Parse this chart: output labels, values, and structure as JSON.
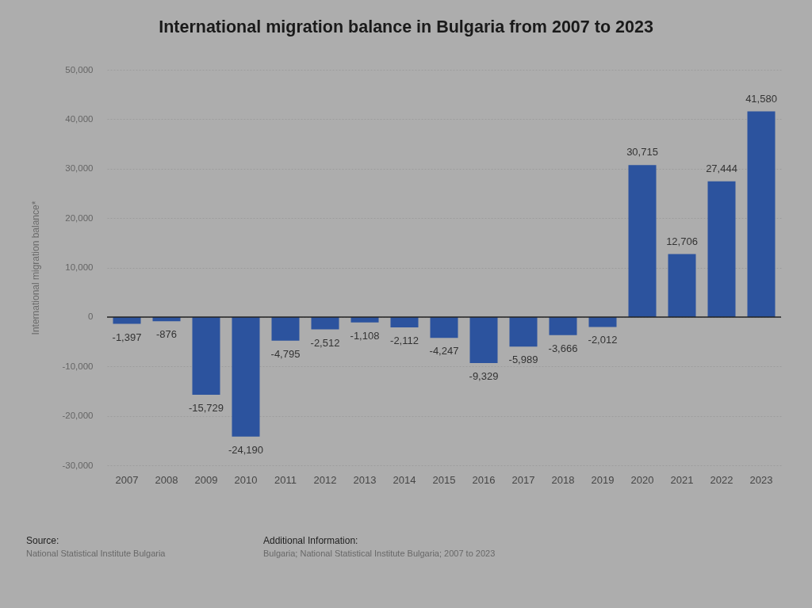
{
  "chart_data": {
    "type": "bar",
    "title": "International migration balance in Bulgaria from 2007 to 2023",
    "ylabel": "International migration balance*",
    "categories": [
      "2007",
      "2008",
      "2009",
      "2010",
      "2011",
      "2012",
      "2013",
      "2014",
      "2015",
      "2016",
      "2017",
      "2018",
      "2019",
      "2020",
      "2021",
      "2022",
      "2023"
    ],
    "values": [
      -1397,
      -876,
      -15729,
      -24190,
      -4795,
      -2512,
      -1108,
      -2112,
      -4247,
      -9329,
      -5989,
      -3666,
      -2012,
      30715,
      12706,
      27444,
      41580
    ],
    "value_labels": [
      "-1,397",
      "-876",
      "-15,729",
      "-24,190",
      "-4,795",
      "-2,512",
      "-1,108",
      "-2,112",
      "-4,247",
      "-9,329",
      "-5,989",
      "-3,666",
      "-2,012",
      "30,715",
      "12,706",
      "27,444",
      "41,580"
    ],
    "color": "#2c539e",
    "ylim": [
      -30000,
      50000
    ],
    "yticks": [
      {
        "value": -30000,
        "label": "-30,000"
      },
      {
        "value": -20000,
        "label": "-20,000"
      },
      {
        "value": -10000,
        "label": "-10,000"
      },
      0,
      {
        "value": 10000,
        "label": "10,000"
      },
      {
        "value": 20000,
        "label": "20,000"
      },
      {
        "value": 30000,
        "label": "30,000"
      },
      {
        "value": 40000,
        "label": "40,000"
      },
      {
        "value": 50000,
        "label": "50,000"
      }
    ],
    "grid": "y",
    "ref_lines": [
      {
        "axis": "y",
        "value": 0,
        "color": "#222222"
      }
    ],
    "annotations": [
      "Source:",
      "National Statistical Institute Bulgaria",
      "Additional Information:",
      "Bulgaria; National Statistical Institute Bulgaria; 2007 to 2023"
    ]
  }
}
